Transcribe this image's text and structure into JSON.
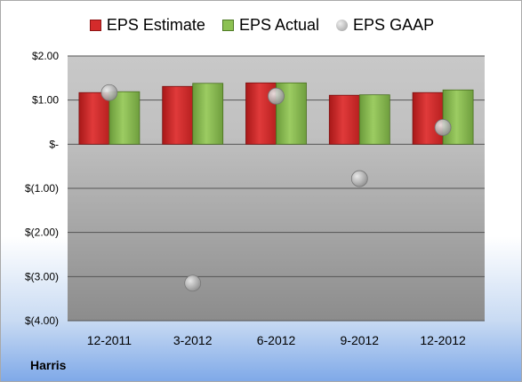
{
  "company": "Harris",
  "chart_data": {
    "type": "bar",
    "categories": [
      "12-2011",
      "3-2012",
      "6-2012",
      "9-2012",
      "12-2012"
    ],
    "series": [
      {
        "name": "EPS Estimate",
        "type": "bar",
        "color": "#d42b2b",
        "values": [
          1.17,
          1.31,
          1.39,
          1.11,
          1.17
        ]
      },
      {
        "name": "EPS Actual",
        "type": "bar",
        "color": "#8cc152",
        "values": [
          1.19,
          1.38,
          1.39,
          1.12,
          1.23
        ]
      },
      {
        "name": "EPS GAAP",
        "type": "scatter",
        "color": "#a8a8a8",
        "values": [
          1.17,
          -3.15,
          1.09,
          -0.78,
          0.38
        ]
      }
    ],
    "ylim": [
      -4.0,
      2.0
    ],
    "yticks": [
      2.0,
      1.0,
      0.0,
      -1.0,
      -2.0,
      -3.0,
      -4.0
    ],
    "ytick_labels": [
      "$2.00",
      "$1.00",
      "$-",
      "$(1.00)",
      "$(2.00)",
      "$(3.00)",
      "$(4.00)"
    ],
    "grid": true,
    "legend_position": "top"
  }
}
